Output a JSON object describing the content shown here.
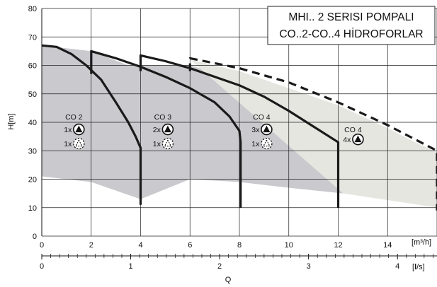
{
  "chart_data": {
    "type": "line",
    "title": [
      "MHI.. 2 SERISI POMPALI",
      "CO..2-CO..4 HİDROFORLAR"
    ],
    "ylabel": "H[m]",
    "xlabel": "Q",
    "ylim": [
      0,
      80
    ],
    "yticks": [
      0,
      10,
      20,
      30,
      40,
      50,
      60,
      70,
      80
    ],
    "x_primary": {
      "unit": "[m³/h]",
      "lim": [
        0,
        16
      ],
      "ticks": [
        0,
        2,
        4,
        6,
        8,
        10,
        12,
        14
      ]
    },
    "x_secondary": {
      "unit_prefix": "[",
      "unit_bold": "l",
      "unit_suffix": "/s]",
      "ticks": [
        0,
        1,
        2,
        3,
        4
      ]
    },
    "grid": true,
    "colors": {
      "envelope_dark": "#c9c9ce",
      "envelope_light": "#e6e6e1",
      "curve": "#1a1a1a"
    },
    "envelopes": [
      {
        "name": "",
        "fill": "dark",
        "top": [
          [
            0,
            67
          ],
          [
            2,
            65
          ],
          [
            3.5,
            60
          ],
          [
            6,
            60
          ],
          [
            8,
            55
          ],
          [
            10,
            48
          ],
          [
            12,
            40
          ],
          [
            12.2,
            39
          ]
        ],
        "bottom": [
          [
            12.2,
            15
          ],
          [
            10,
            17
          ],
          [
            8,
            19
          ],
          [
            6,
            20
          ],
          [
            4,
            13
          ],
          [
            2,
            19
          ],
          [
            0,
            21
          ]
        ]
      },
      {
        "name": "",
        "fill": "light",
        "top": [
          [
            6,
            62
          ],
          [
            8,
            58
          ],
          [
            10,
            52
          ],
          [
            12,
            46
          ],
          [
            13,
            42
          ],
          [
            14,
            38
          ],
          [
            15,
            33.5
          ],
          [
            16,
            29.5
          ]
        ],
        "bottom": [
          [
            16,
            10
          ],
          [
            14.5,
            12
          ],
          [
            12.2,
            15
          ]
        ]
      }
    ],
    "series": [
      {
        "name": "CO 2",
        "dashed": false,
        "points": [
          [
            0,
            67
          ],
          [
            0.6,
            66.5
          ],
          [
            1.2,
            64
          ],
          [
            1.8,
            60
          ],
          [
            2.4,
            55
          ],
          [
            3.0,
            47
          ],
          [
            3.5,
            40
          ],
          [
            3.8,
            35
          ],
          [
            4.0,
            31
          ],
          [
            4.0,
            11
          ]
        ]
      },
      {
        "name": "",
        "dashed": false,
        "points": [
          [
            2,
            57
          ],
          [
            2,
            65
          ],
          [
            3,
            62.5
          ],
          [
            4,
            59.5
          ],
          [
            5,
            56
          ],
          [
            6,
            52
          ],
          [
            7,
            47
          ],
          [
            7.6,
            42
          ],
          [
            8,
            37
          ],
          [
            8.05,
            33
          ],
          [
            8.05,
            10
          ]
        ]
      },
      {
        "name": "",
        "dashed": false,
        "points": [
          [
            4,
            58
          ],
          [
            4,
            63.5
          ],
          [
            5,
            61.5
          ],
          [
            6,
            59
          ],
          [
            7,
            56
          ],
          [
            8,
            53
          ],
          [
            9,
            49
          ],
          [
            10,
            44
          ],
          [
            11,
            38.5
          ],
          [
            12,
            33
          ],
          [
            12,
            10
          ]
        ]
      },
      {
        "name": "",
        "dashed": true,
        "points": [
          [
            6,
            58
          ],
          [
            6,
            62.5
          ],
          [
            8,
            59
          ],
          [
            10,
            54
          ],
          [
            12,
            47
          ],
          [
            13,
            43
          ],
          [
            14,
            39
          ],
          [
            15,
            34.5
          ],
          [
            16,
            30
          ],
          [
            16,
            9
          ]
        ]
      }
    ],
    "annotations": [
      {
        "group": "CO 2",
        "label": "CO 2",
        "x": 1.3,
        "y": 42,
        "rows": [
          {
            "count": "1x",
            "pump": "solid",
            "y": 37.5
          },
          {
            "count": "1x",
            "pump": "dashed",
            "y": 32.5
          }
        ]
      },
      {
        "group": "CO 3",
        "label": "CO 3",
        "x": 4.9,
        "y": 42,
        "rows": [
          {
            "count": "2x",
            "pump": "solid",
            "y": 37.5
          },
          {
            "count": "1x",
            "pump": "dashed",
            "y": 32.5
          }
        ]
      },
      {
        "group": "CO 4",
        "label": "CO 4",
        "x": 8.9,
        "y": 42,
        "rows": [
          {
            "count": "3x",
            "pump": "solid",
            "y": 37.5
          },
          {
            "count": "1x",
            "pump": "dashed",
            "y": 32.5
          }
        ]
      },
      {
        "group": "CO 4",
        "label": "CO 4",
        "x": 12.6,
        "y": 37.5,
        "rows": [
          {
            "count": "4x",
            "pump": "solid",
            "y": 34
          }
        ]
      }
    ]
  }
}
